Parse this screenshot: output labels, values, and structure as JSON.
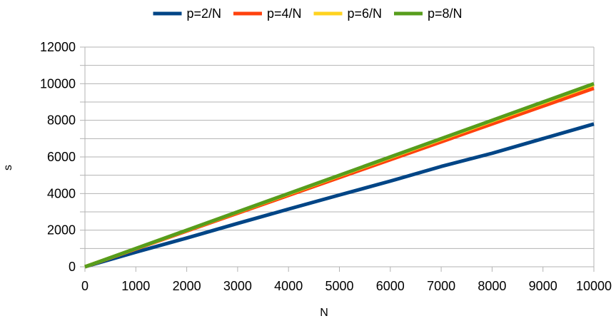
{
  "chart_data": {
    "type": "line",
    "title": "",
    "xlabel": "N",
    "ylabel": "s",
    "xlim": [
      0,
      10000
    ],
    "ylim": [
      0,
      12000
    ],
    "x_ticks": [
      0,
      1000,
      2000,
      3000,
      4000,
      5000,
      6000,
      7000,
      8000,
      9000,
      10000
    ],
    "y_ticks": [
      0,
      2000,
      4000,
      6000,
      8000,
      10000,
      12000
    ],
    "grid": true,
    "legend_position": "top",
    "x": [
      0,
      1000,
      2000,
      3000,
      4000,
      5000,
      6000,
      7000,
      8000,
      9000,
      10000
    ],
    "series": [
      {
        "name": "p=2/N",
        "color": "#004586",
        "values": [
          0,
          800,
          1570,
          2370,
          3150,
          3920,
          4680,
          5480,
          6200,
          7000,
          7800
        ]
      },
      {
        "name": "p=4/N",
        "color": "#ff420e",
        "values": [
          0,
          975,
          1950,
          2925,
          3900,
          4875,
          5850,
          6825,
          7800,
          8775,
          9750
        ]
      },
      {
        "name": "p=6/N",
        "color": "#ffd320",
        "values": [
          0,
          995,
          1990,
          2985,
          3980,
          4975,
          5970,
          6965,
          7960,
          8955,
          9950
        ]
      },
      {
        "name": "p=8/N",
        "color": "#579d1c",
        "values": [
          0,
          1000,
          2000,
          3000,
          4000,
          5000,
          6000,
          7000,
          8000,
          9000,
          10000
        ]
      }
    ]
  }
}
